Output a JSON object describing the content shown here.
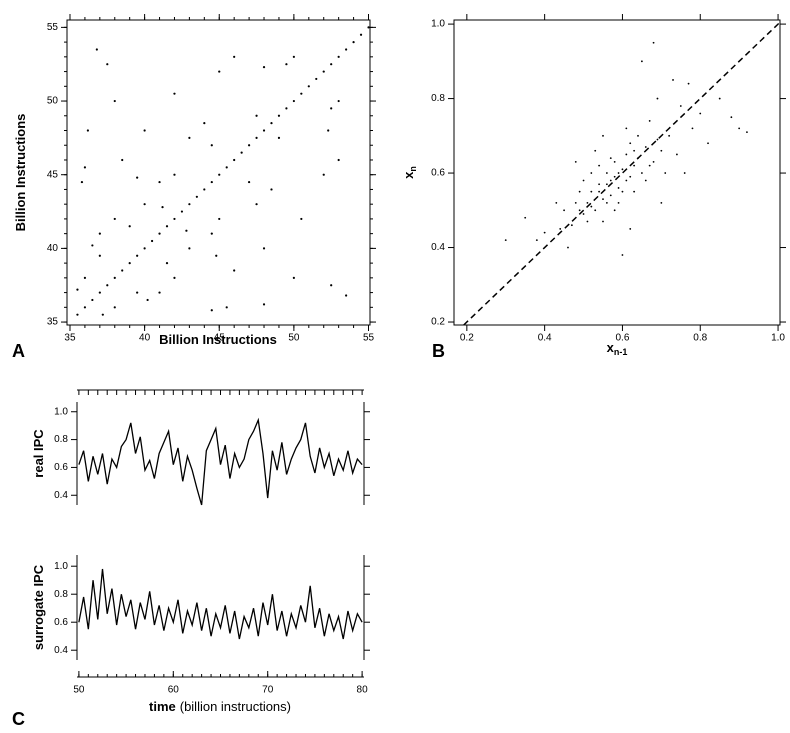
{
  "chart_data": [
    {
      "type": "scatter",
      "panel": "A",
      "xlabel": "Billion Instructions",
      "ylabel": "Billion Instructions",
      "color": "#000000",
      "xlim": [
        34.8,
        55.1
      ],
      "ylim": [
        34.8,
        55.5
      ],
      "xticks": [
        35,
        40,
        45,
        50,
        55
      ],
      "yticks": [
        35,
        40,
        45,
        50,
        55
      ],
      "xminorticks": [
        35,
        36,
        37,
        38,
        39,
        40,
        41,
        42,
        43,
        44,
        45,
        46,
        47,
        48,
        49,
        50,
        51,
        52,
        53,
        54,
        55
      ],
      "yminorticks": [
        35,
        36,
        37,
        38,
        39,
        40,
        41,
        42,
        43,
        44,
        45,
        46,
        47,
        48,
        49,
        50,
        51,
        52,
        53,
        54,
        55
      ],
      "x": [
        35.5,
        36,
        36.5,
        37,
        37.5,
        38,
        38.5,
        39,
        39.5,
        40,
        40.5,
        41,
        41.5,
        42,
        42.5,
        43,
        43.5,
        44,
        44.5,
        45,
        45.5,
        46,
        46.5,
        47,
        47.5,
        48,
        48.5,
        49,
        49.5,
        50,
        50.5,
        51,
        51.5,
        52,
        52.5,
        53,
        53.5,
        54,
        54.5,
        55,
        36.0,
        36.5,
        37.0,
        35.8,
        36.2,
        37.5,
        38.0,
        39.0,
        40.0,
        41.0,
        38.5,
        42.0,
        43.0,
        44.0,
        36.0,
        37.0,
        45.0,
        46.0,
        48.0,
        50.0,
        49.5,
        38.0,
        40.0,
        42.0,
        44.5,
        35.5,
        39.5,
        41.2,
        36.8,
        47.5,
        38.0,
        40.2,
        41.0,
        44.5,
        48.0,
        52.5,
        42.0,
        41.5,
        43.0,
        44.5,
        46.0,
        45.0,
        47.5,
        48.5,
        45.5,
        39.5,
        52.0,
        53.0,
        52.3,
        53.0,
        52.5,
        50.0,
        48.0,
        50.5,
        47.0,
        37.2,
        44.8,
        42.8,
        53.5,
        49.0
      ],
      "y": [
        35.5,
        36,
        36.5,
        37,
        37.5,
        38,
        38.5,
        39,
        39.5,
        40,
        40.5,
        41,
        41.5,
        42,
        42.5,
        43,
        43.5,
        44,
        44.5,
        45,
        45.5,
        46,
        46.5,
        47,
        47.5,
        48,
        48.5,
        49,
        49.5,
        50,
        50.5,
        51,
        51.5,
        52,
        52.5,
        53,
        53.5,
        54,
        54.5,
        55,
        38.0,
        40.2,
        41.0,
        44.5,
        48.0,
        52.5,
        42.0,
        41.5,
        43.0,
        44.5,
        46.0,
        45.0,
        47.5,
        48.5,
        45.5,
        39.5,
        52.0,
        53.0,
        52.3,
        53.0,
        52.5,
        50.0,
        48.0,
        50.5,
        47.0,
        37.2,
        44.8,
        42.8,
        53.5,
        49.0,
        36.0,
        36.5,
        37.0,
        35.8,
        36.2,
        37.5,
        38.0,
        39.0,
        40.0,
        41.0,
        38.5,
        42.0,
        43.0,
        44.0,
        36.0,
        37.0,
        45.0,
        46.0,
        48.0,
        50.0,
        49.5,
        38.0,
        40.0,
        42.0,
        44.5,
        35.5,
        39.5,
        41.2,
        36.8,
        47.5
      ]
    },
    {
      "type": "scatter",
      "panel": "B",
      "xlabel": "x",
      "xlabel_sub": "n-1",
      "ylabel": "x",
      "ylabel_sub": "n",
      "color": "#000000",
      "diagonal": true,
      "xlim": [
        0.167,
        1.005
      ],
      "ylim": [
        0.192,
        1.011
      ],
      "xticks": [
        0.2,
        0.4,
        0.6,
        0.8,
        {
          "value": 1,
          "label": "1.0"
        }
      ],
      "yticks": [
        0.2,
        0.4,
        0.6,
        0.8,
        {
          "value": 1,
          "label": "1.0"
        }
      ],
      "x": [
        0.5,
        0.52,
        0.55,
        0.57,
        0.6,
        0.62,
        0.58,
        0.54,
        0.56,
        0.59,
        0.61,
        0.63,
        0.65,
        0.53,
        0.48,
        0.51,
        0.66,
        0.68,
        0.64,
        0.7,
        0.47,
        0.45,
        0.49,
        0.56,
        0.6,
        0.57,
        0.62,
        0.55,
        0.72,
        0.74,
        0.67,
        0.58,
        0.52,
        0.44,
        0.75,
        0.78,
        0.69,
        0.8,
        0.82,
        0.61,
        0.43,
        0.46,
        0.54,
        0.59,
        0.71,
        0.63,
        0.5,
        0.66,
        0.53,
        0.4,
        0.38,
        0.85,
        0.88,
        0.73,
        0.65,
        0.9,
        0.6,
        0.35,
        0.7,
        0.48,
        0.55,
        0.62,
        0.76,
        0.57,
        0.58,
        0.59,
        0.56,
        0.61,
        0.54,
        0.51,
        0.64,
        0.67,
        0.63,
        0.52,
        0.49,
        0.69,
        0.77,
        0.92,
        0.3,
        0.68
      ],
      "y": [
        0.49,
        0.55,
        0.53,
        0.58,
        0.61,
        0.59,
        0.63,
        0.57,
        0.52,
        0.56,
        0.65,
        0.62,
        0.6,
        0.5,
        0.52,
        0.47,
        0.67,
        0.63,
        0.7,
        0.66,
        0.46,
        0.5,
        0.55,
        0.6,
        0.55,
        0.64,
        0.68,
        0.47,
        0.7,
        0.65,
        0.74,
        0.5,
        0.6,
        0.45,
        0.78,
        0.72,
        0.8,
        0.76,
        0.68,
        0.72,
        0.52,
        0.4,
        0.62,
        0.52,
        0.6,
        0.55,
        0.58,
        0.58,
        0.66,
        0.44,
        0.42,
        0.8,
        0.75,
        0.85,
        0.9,
        0.72,
        0.38,
        0.48,
        0.52,
        0.63,
        0.7,
        0.45,
        0.6,
        0.54,
        0.59,
        0.6,
        0.57,
        0.58,
        0.55,
        0.52,
        0.64,
        0.62,
        0.66,
        0.51,
        0.5,
        0.69,
        0.84,
        0.71,
        0.42,
        0.95
      ]
    },
    {
      "type": "line",
      "ylabel": "real IPC",
      "color": "#000000",
      "xlim": [
        49.8,
        80.2
      ],
      "ylim": [
        0.33,
        1.07
      ],
      "yticks": [
        0.4,
        0.6,
        0.8,
        {
          "value": 1,
          "label": "1.0"
        }
      ],
      "xminorticks": [
        50,
        51,
        52,
        53,
        54,
        55,
        56,
        57,
        58,
        59,
        60,
        61,
        62,
        63,
        64,
        65,
        66,
        67,
        68,
        69,
        70,
        71,
        72,
        73,
        74,
        75,
        76,
        77,
        78,
        79,
        80
      ],
      "x": [
        50,
        50.5,
        51,
        51.5,
        52,
        52.5,
        53,
        53.5,
        54,
        54.5,
        55,
        55.5,
        56,
        56.5,
        57,
        57.5,
        58,
        58.5,
        59,
        59.5,
        60,
        60.5,
        61,
        61.5,
        62,
        62.5,
        63,
        63.5,
        64,
        64.5,
        65,
        65.5,
        66,
        66.5,
        67,
        67.5,
        68,
        68.5,
        69,
        69.5,
        70,
        70.5,
        71,
        71.5,
        72,
        72.5,
        73,
        73.5,
        74,
        74.5,
        75,
        75.5,
        76,
        76.5,
        77,
        77.5,
        78,
        78.5,
        79,
        79.5,
        80
      ],
      "values": [
        0.62,
        0.72,
        0.5,
        0.68,
        0.55,
        0.7,
        0.48,
        0.66,
        0.6,
        0.75,
        0.8,
        0.92,
        0.7,
        0.82,
        0.58,
        0.65,
        0.52,
        0.7,
        0.78,
        0.86,
        0.62,
        0.74,
        0.5,
        0.68,
        0.58,
        0.45,
        0.33,
        0.72,
        0.8,
        0.88,
        0.62,
        0.76,
        0.52,
        0.7,
        0.6,
        0.66,
        0.8,
        0.86,
        0.94,
        0.7,
        0.38,
        0.72,
        0.58,
        0.78,
        0.55,
        0.66,
        0.74,
        0.8,
        0.92,
        0.68,
        0.56,
        0.74,
        0.6,
        0.7,
        0.54,
        0.66,
        0.58,
        0.72,
        0.56,
        0.66,
        0.62
      ]
    },
    {
      "type": "line",
      "panel": "C",
      "ylabel": "surrogate IPC",
      "xlabel_bold": "time",
      "xlabel": "(billion instructions)",
      "color": "#000000",
      "xlim": [
        49.8,
        80.2
      ],
      "ylim": [
        0.33,
        1.08
      ],
      "xticks": [
        50,
        60,
        70,
        80
      ],
      "yticks": [
        0.4,
        0.6,
        0.8,
        {
          "value": 1,
          "label": "1.0"
        }
      ],
      "xminorticks": [
        50,
        51,
        52,
        53,
        54,
        55,
        56,
        57,
        58,
        59,
        60,
        61,
        62,
        63,
        64,
        65,
        66,
        67,
        68,
        69,
        70,
        71,
        72,
        73,
        74,
        75,
        76,
        77,
        78,
        79,
        80
      ],
      "x": [
        50,
        50.5,
        51,
        51.5,
        52,
        52.5,
        53,
        53.5,
        54,
        54.5,
        55,
        55.5,
        56,
        56.5,
        57,
        57.5,
        58,
        58.5,
        59,
        59.5,
        60,
        60.5,
        61,
        61.5,
        62,
        62.5,
        63,
        63.5,
        64,
        64.5,
        65,
        65.5,
        66,
        66.5,
        67,
        67.5,
        68,
        68.5,
        69,
        69.5,
        70,
        70.5,
        71,
        71.5,
        72,
        72.5,
        73,
        73.5,
        74,
        74.5,
        75,
        75.5,
        76,
        76.5,
        77,
        77.5,
        78,
        78.5,
        79,
        79.5,
        80
      ],
      "values": [
        0.6,
        0.78,
        0.55,
        0.9,
        0.62,
        0.98,
        0.66,
        0.84,
        0.58,
        0.8,
        0.64,
        0.76,
        0.55,
        0.74,
        0.62,
        0.82,
        0.58,
        0.72,
        0.54,
        0.7,
        0.6,
        0.76,
        0.52,
        0.68,
        0.58,
        0.74,
        0.54,
        0.7,
        0.5,
        0.66,
        0.56,
        0.72,
        0.52,
        0.68,
        0.48,
        0.64,
        0.56,
        0.7,
        0.5,
        0.74,
        0.58,
        0.8,
        0.54,
        0.68,
        0.5,
        0.66,
        0.56,
        0.72,
        0.6,
        0.86,
        0.56,
        0.7,
        0.5,
        0.66,
        0.54,
        0.64,
        0.48,
        0.68,
        0.54,
        0.66,
        0.6
      ]
    }
  ]
}
